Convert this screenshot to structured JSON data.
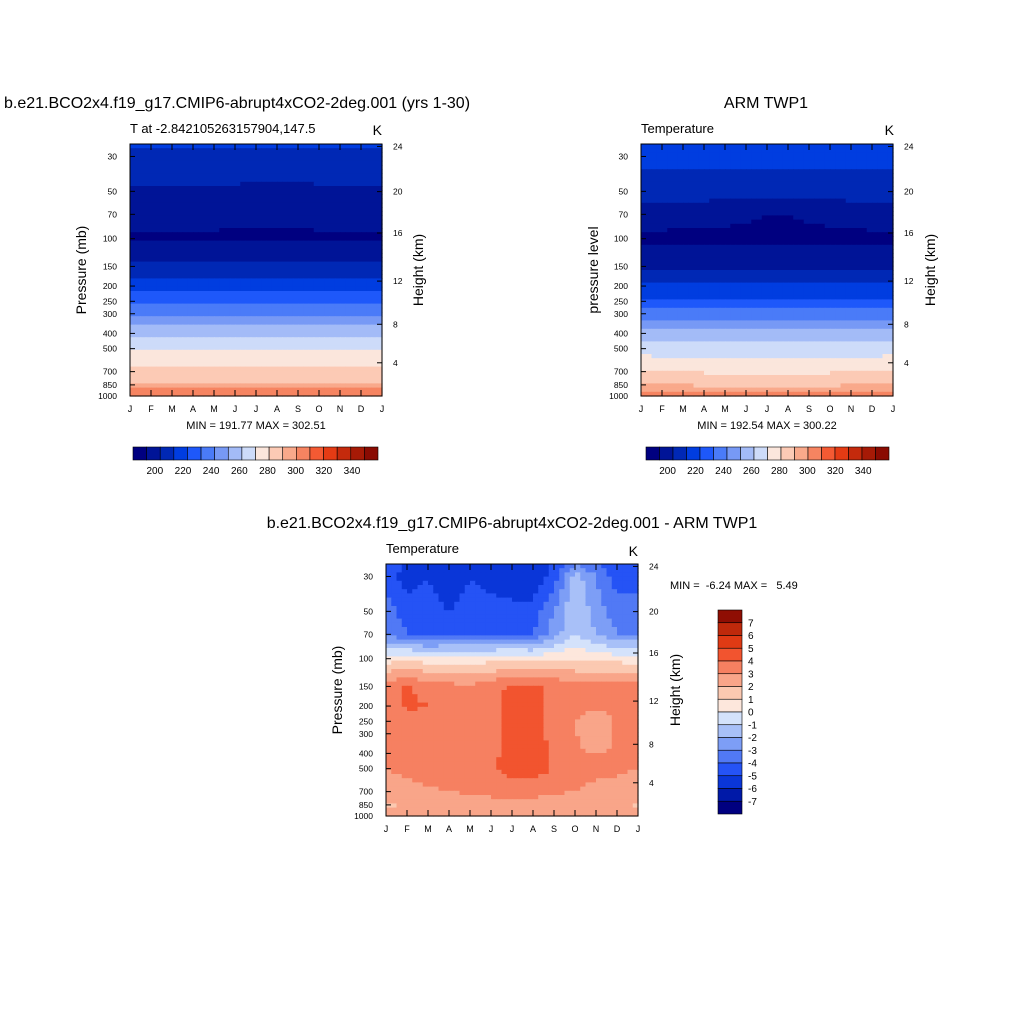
{
  "chart_data": [
    {
      "type": "heatmap",
      "title": "b.e21.BCO2x4.f19_g17.CMIP6-abrupt4xCO2-2deg.001 (yrs 1-30)",
      "subtitle_left": "T at -2.842105263157904,147.5",
      "units": "K",
      "xlabel": "",
      "ylabel": "Pressure (mb)",
      "ylabel_right": "Height (km)",
      "x_ticks": [
        "J",
        "F",
        "M",
        "A",
        "M",
        "J",
        "J",
        "A",
        "S",
        "O",
        "N",
        "D",
        "J"
      ],
      "y_ticks": [
        "30",
        "50",
        "70",
        "100",
        "150",
        "200",
        "250",
        "300",
        "400",
        "500",
        "700",
        "850",
        "1000"
      ],
      "y2_ticks": [
        "24",
        "20",
        "16",
        "12",
        "8",
        "4"
      ],
      "stats": "MIN = 191.77 MAX = 302.51",
      "colorbar_labels": [
        "200",
        "220",
        "240",
        "260",
        "280",
        "300",
        "320",
        "340"
      ],
      "contour_levels": [
        195,
        200,
        205,
        210,
        215,
        220,
        225,
        230,
        235,
        240,
        245,
        250,
        255,
        260,
        265,
        270,
        275,
        280,
        285,
        290,
        295,
        300,
        305,
        310,
        315,
        320,
        325,
        330,
        335,
        340,
        345
      ],
      "pressure_levels": [
        25,
        30,
        50,
        70,
        100,
        150,
        200,
        250,
        300,
        400,
        500,
        700,
        850,
        1000
      ],
      "months": [
        "J",
        "F",
        "M",
        "A",
        "M",
        "J",
        "J",
        "A",
        "S",
        "O",
        "N",
        "D",
        "J"
      ],
      "values": [
        [
          216,
          216,
          216,
          216,
          216,
          216,
          216,
          216,
          216,
          216,
          216,
          216,
          216
        ],
        [
          214,
          214,
          214,
          214,
          214,
          214,
          213,
          213,
          213,
          213,
          214,
          214,
          214
        ],
        [
          204,
          204,
          204,
          204,
          203,
          203,
          202,
          202,
          202,
          203,
          204,
          204,
          204
        ],
        [
          198,
          198,
          198,
          197,
          197,
          196,
          196,
          196,
          196,
          197,
          198,
          198,
          198
        ],
        [
          194,
          194,
          194,
          194,
          194,
          194,
          194,
          194,
          194,
          194,
          194,
          194,
          194
        ],
        [
          207,
          207,
          207,
          207,
          207,
          207,
          207,
          207,
          207,
          207,
          207,
          207,
          207
        ],
        [
          220,
          220,
          220,
          220,
          220,
          220,
          220,
          220,
          220,
          220,
          220,
          220,
          220
        ],
        [
          232,
          232,
          232,
          232,
          232,
          232,
          232,
          232,
          232,
          232,
          232,
          232,
          232
        ],
        [
          243,
          243,
          243,
          243,
          243,
          243,
          243,
          243,
          243,
          243,
          243,
          243,
          243
        ],
        [
          257,
          257,
          257,
          257,
          257,
          257,
          257,
          257,
          257,
          257,
          257,
          257,
          257
        ],
        [
          268,
          268,
          268,
          268,
          268,
          268,
          268,
          268,
          268,
          268,
          268,
          268,
          268
        ],
        [
          283,
          283,
          283,
          283,
          283,
          283,
          283,
          283,
          283,
          283,
          283,
          283,
          283
        ],
        [
          292,
          292,
          292,
          292,
          292,
          292,
          292,
          292,
          292,
          292,
          292,
          292,
          292
        ],
        [
          299,
          299,
          299,
          299,
          299,
          299,
          299,
          300,
          300,
          299,
          299,
          299,
          299
        ]
      ]
    },
    {
      "type": "heatmap",
      "title": "ARM TWP1",
      "subtitle_left": "Temperature",
      "units": "K",
      "xlabel": "",
      "ylabel": "pressure level",
      "ylabel_right": "Height (km)",
      "x_ticks": [
        "J",
        "F",
        "M",
        "A",
        "M",
        "J",
        "J",
        "A",
        "S",
        "O",
        "N",
        "D",
        "J"
      ],
      "y_ticks": [
        "30",
        "50",
        "70",
        "100",
        "150",
        "200",
        "250",
        "300",
        "400",
        "500",
        "700",
        "850",
        "1000"
      ],
      "y2_ticks": [
        "24",
        "20",
        "16",
        "12",
        "8",
        "4"
      ],
      "stats": "MIN = 192.54 MAX = 300.22",
      "colorbar_labels": [
        "200",
        "220",
        "240",
        "260",
        "280",
        "300",
        "320",
        "340"
      ],
      "contour_levels": [
        195,
        200,
        205,
        210,
        215,
        220,
        225,
        230,
        235,
        240,
        245,
        250,
        255,
        260,
        265,
        270,
        275,
        280,
        285,
        290,
        295,
        300,
        305,
        310,
        315,
        320,
        325,
        330,
        335,
        340,
        345
      ],
      "pressure_levels": [
        25,
        30,
        50,
        70,
        100,
        150,
        200,
        250,
        300,
        400,
        500,
        700,
        850,
        1000
      ],
      "months": [
        "J",
        "F",
        "M",
        "A",
        "M",
        "J",
        "J",
        "A",
        "S",
        "O",
        "N",
        "D",
        "J"
      ],
      "values": [
        [
          220,
          220,
          220,
          220,
          220,
          220,
          220,
          220,
          220,
          220,
          220,
          220,
          220
        ],
        [
          218,
          218,
          218,
          218,
          218,
          218,
          218,
          218,
          218,
          218,
          218,
          218,
          218
        ],
        [
          210,
          210,
          210,
          210,
          210,
          209,
          209,
          209,
          209,
          210,
          210,
          210,
          210
        ],
        [
          199,
          199,
          198,
          198,
          197,
          196,
          195,
          195,
          196,
          197,
          198,
          199,
          199
        ],
        [
          193,
          193,
          193,
          193,
          193,
          193,
          193,
          193,
          193,
          193,
          193,
          193,
          193
        ],
        [
          204,
          204,
          204,
          204,
          204,
          204,
          204,
          204,
          204,
          204,
          204,
          204,
          204
        ],
        [
          216,
          216,
          216,
          216,
          216,
          216,
          216,
          216,
          216,
          216,
          216,
          216,
          216
        ],
        [
          228,
          228,
          228,
          228,
          228,
          228,
          228,
          228,
          228,
          228,
          228,
          228,
          228
        ],
        [
          240,
          240,
          240,
          240,
          240,
          240,
          240,
          240,
          240,
          240,
          240,
          240,
          240
        ],
        [
          254,
          254,
          254,
          254,
          254,
          254,
          254,
          254,
          254,
          254,
          254,
          254,
          254
        ],
        [
          265,
          265,
          265,
          265,
          265,
          265,
          265,
          265,
          265,
          265,
          265,
          265,
          265
        ],
        [
          281,
          280,
          280,
          279,
          278,
          278,
          278,
          278,
          278,
          279,
          280,
          280,
          281
        ],
        [
          290,
          290,
          290,
          289,
          289,
          289,
          289,
          289,
          289,
          289,
          290,
          290,
          290
        ],
        [
          297,
          297,
          297,
          297,
          297,
          297,
          297,
          297,
          297,
          297,
          297,
          297,
          297
        ]
      ]
    },
    {
      "type": "heatmap",
      "title": "b.e21.BCO2x4.f19_g17.CMIP6-abrupt4xCO2-2deg.001 - ARM TWP1",
      "subtitle_left": "Temperature",
      "units": "K",
      "xlabel": "",
      "ylabel": "Pressure (mb)",
      "ylabel_right": "Height (km)",
      "x_ticks": [
        "J",
        "F",
        "M",
        "A",
        "M",
        "J",
        "J",
        "A",
        "S",
        "O",
        "N",
        "D",
        "J"
      ],
      "y_ticks": [
        "30",
        "50",
        "70",
        "100",
        "150",
        "200",
        "250",
        "300",
        "400",
        "500",
        "700",
        "850",
        "1000"
      ],
      "y2_ticks": [
        "24",
        "20",
        "16",
        "12",
        "8",
        "4"
      ],
      "stats": "MIN =  -6.24 MAX =   5.49",
      "colorbar_labels": [
        "7",
        "6",
        "5",
        "4",
        "3",
        "2",
        "1",
        "0",
        "-1",
        "-2",
        "-3",
        "-4",
        "-5",
        "-6",
        "-7"
      ],
      "contour_levels": [
        -7,
        -6,
        -5,
        -4,
        -3,
        -2,
        -1,
        0,
        1,
        2,
        3,
        4,
        5,
        6,
        7
      ],
      "pressure_levels": [
        25,
        30,
        50,
        70,
        100,
        150,
        200,
        250,
        300,
        400,
        500,
        700,
        850,
        1000
      ],
      "months": [
        "J",
        "F",
        "M",
        "A",
        "M",
        "J",
        "J",
        "A",
        "S",
        "O",
        "N",
        "D",
        "J"
      ],
      "values": [
        [
          -4.5,
          -5,
          -5,
          -5.5,
          -5,
          -5,
          -5,
          -5.5,
          -5,
          -3,
          -4,
          -5,
          -4.5
        ],
        [
          -4.5,
          -5.5,
          -5,
          -6,
          -5,
          -5.5,
          -6,
          -6,
          -4.5,
          -1.5,
          -3,
          -4.5,
          -4.5
        ],
        [
          -3.5,
          -4.5,
          -4.5,
          -5,
          -4.5,
          -4.5,
          -4.5,
          -4.5,
          -3,
          -1,
          -2.5,
          -3.5,
          -3.5
        ],
        [
          -3,
          -4,
          -4.5,
          -4,
          -4,
          -4,
          -4,
          -4,
          -2.5,
          -1,
          -2,
          -3,
          -3
        ],
        [
          0.5,
          0.8,
          0.5,
          0.6,
          0.5,
          0.6,
          0.7,
          0.6,
          0.8,
          1,
          0.8,
          0.6,
          0.5
        ],
        [
          3.5,
          4.1,
          3.6,
          3.3,
          3.2,
          3.6,
          4.2,
          4.3,
          3.8,
          3.2,
          3.4,
          3.6,
          3.5
        ],
        [
          3.2,
          4.2,
          4.0,
          3.3,
          3.1,
          3.6,
          4.4,
          4.4,
          3.6,
          3.2,
          3.3,
          3.4,
          3.2
        ],
        [
          3.1,
          3.6,
          3.6,
          3.2,
          3.1,
          3.4,
          4.6,
          4.5,
          3.6,
          3.1,
          2.1,
          3.3,
          3.1
        ],
        [
          3,
          3.2,
          3.1,
          3.1,
          3.1,
          3.2,
          4.6,
          4.5,
          3.6,
          3.1,
          2.1,
          3.2,
          3
        ],
        [
          3,
          3.1,
          3.2,
          3.2,
          3.3,
          3.6,
          4.6,
          4.6,
          3.8,
          3.1,
          3.0,
          3.1,
          3
        ],
        [
          3,
          3.2,
          3.6,
          3.5,
          3.8,
          3.8,
          4.5,
          4.6,
          3.9,
          3.2,
          3.1,
          3.1,
          3
        ],
        [
          2.6,
          2.7,
          2.8,
          3.0,
          3.1,
          3.2,
          3.4,
          3.3,
          3.1,
          3.0,
          2.9,
          2.8,
          2.6
        ],
        [
          1.8,
          2.2,
          2.6,
          2.6,
          2.6,
          2.7,
          2.8,
          2.7,
          2.6,
          2.4,
          2.0,
          2.3,
          1.8
        ],
        [
          2.2,
          2.4,
          2.5,
          2.6,
          2.6,
          2.6,
          2.7,
          2.6,
          2.5,
          2.4,
          2.2,
          2.3,
          2.2
        ]
      ]
    }
  ],
  "colors": {
    "temp_palette": [
      "#000080",
      "#001497",
      "#0028b5",
      "#003de0",
      "#1e58fa",
      "#4a7bf8",
      "#7799f5",
      "#a3bbf7",
      "#cddbf9",
      "#fbe6dc",
      "#fccab5",
      "#f9a98b",
      "#f68461",
      "#f45a33",
      "#e43b14",
      "#c42a0c",
      "#a61a06",
      "#8a0b02"
    ],
    "diff_palette": [
      "#000080",
      "#0019a8",
      "#0a36d8",
      "#2553f5",
      "#5179f5",
      "#7d9ef6",
      "#a8c0f8",
      "#d4e2fb",
      "#fde7dc",
      "#fbc9b1",
      "#f9a589",
      "#f68061",
      "#f2542f",
      "#e03a14",
      "#bf290b",
      "#8f0e03"
    ]
  }
}
